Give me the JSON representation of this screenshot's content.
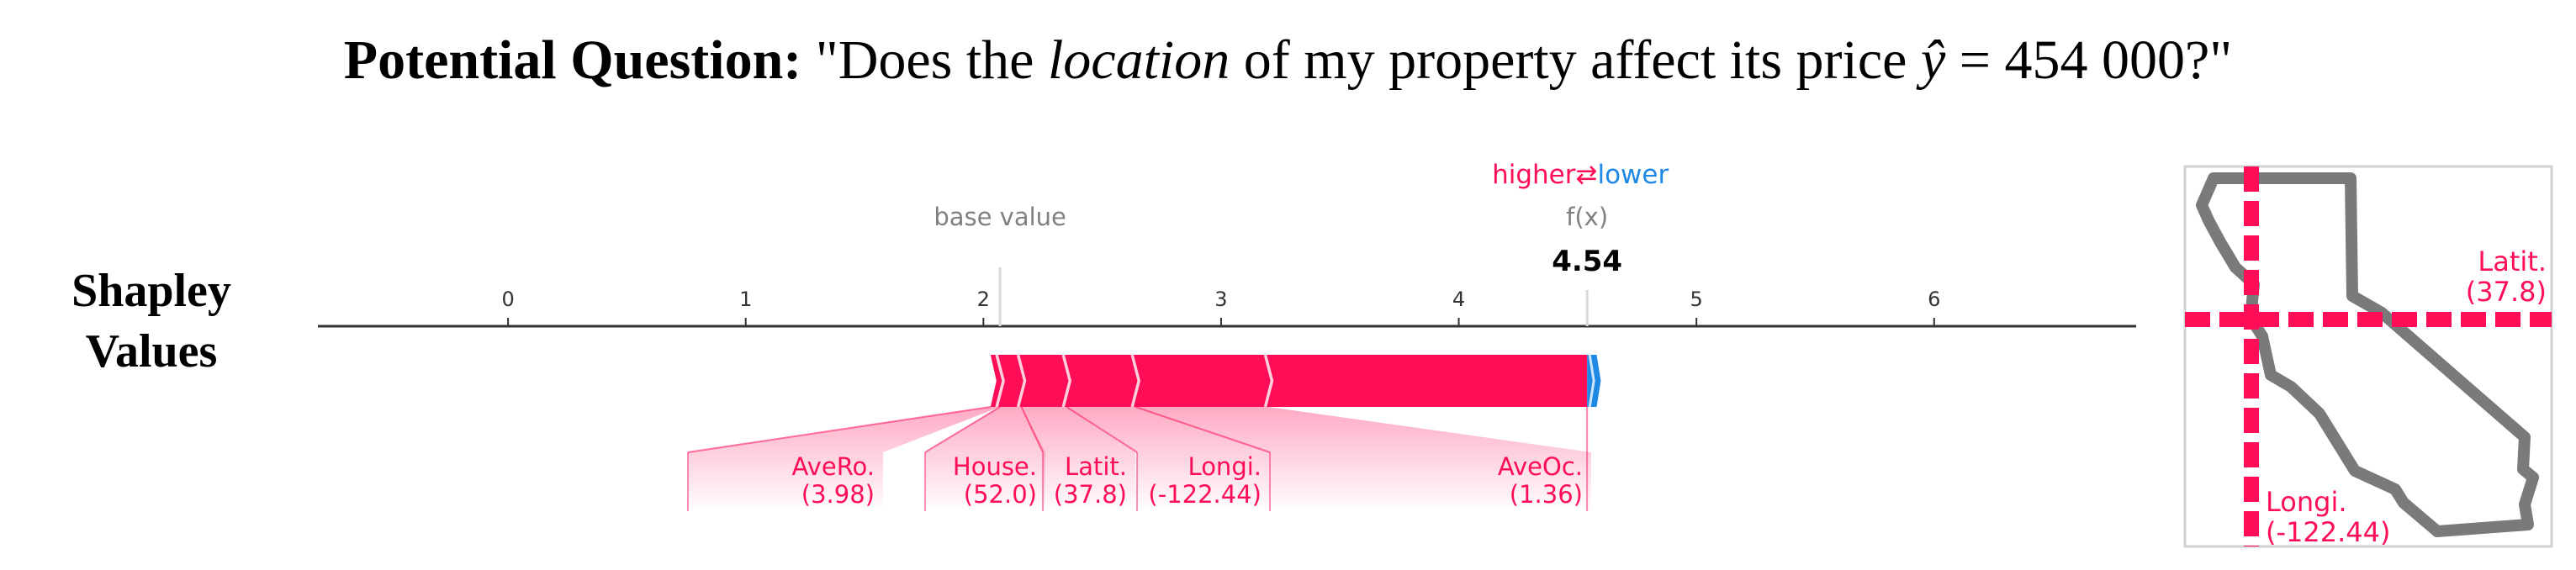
{
  "question": {
    "label": "Potential Question:",
    "open_quote": "\"Does the ",
    "emphasis": "location",
    "rest": " of my property affect its price ",
    "yhat": "ŷ",
    "equals": " = ",
    "value": "454 000",
    "close": "?\""
  },
  "side_label": {
    "line1": "Shapley",
    "line2": "Values"
  },
  "colors": {
    "positive": "#ff0d57",
    "negative": "#1e88e5",
    "axis": "#333333",
    "muted": "#808080",
    "map": "#7a7a7a"
  },
  "chart_data": {
    "type": "force-plot",
    "xlim": [
      -0.8,
      6.85
    ],
    "ticks": [
      0,
      1,
      2,
      3,
      4,
      5,
      6
    ],
    "base_value": 2.07,
    "base_value_label": "base value",
    "fx_label": "f(x)",
    "fx_value": 4.54,
    "fx_value_label": "4.54",
    "legend": {
      "higher": "higher",
      "lower": "lower",
      "arrow": "⇄"
    },
    "positive_features": [
      {
        "name": "AveRo.",
        "value_label": "(3.98)",
        "from": 2.03,
        "to": 2.07
      },
      {
        "name": "House.",
        "value_label": "(52.0)",
        "from": 2.07,
        "to": 2.16
      },
      {
        "name": "Latit.",
        "value_label": "(37.8)",
        "from": 2.16,
        "to": 2.35
      },
      {
        "name": "Longi.",
        "value_label": "(-122.44)",
        "from": 2.35,
        "to": 2.64
      },
      {
        "name": "AveOc.",
        "value_label": "(1.36)",
        "from": 2.64,
        "to": 3.2
      },
      {
        "name": "",
        "value_label": "",
        "from": 3.2,
        "to": 4.54
      }
    ],
    "negative_features": [
      {
        "name": "",
        "value_label": "",
        "from": 4.54,
        "to": 4.58
      }
    ]
  },
  "map": {
    "latitude_label": "Latit.",
    "latitude_value": "(37.8)",
    "longitude_label": "Longi.",
    "longitude_value": "(-122.44)"
  }
}
